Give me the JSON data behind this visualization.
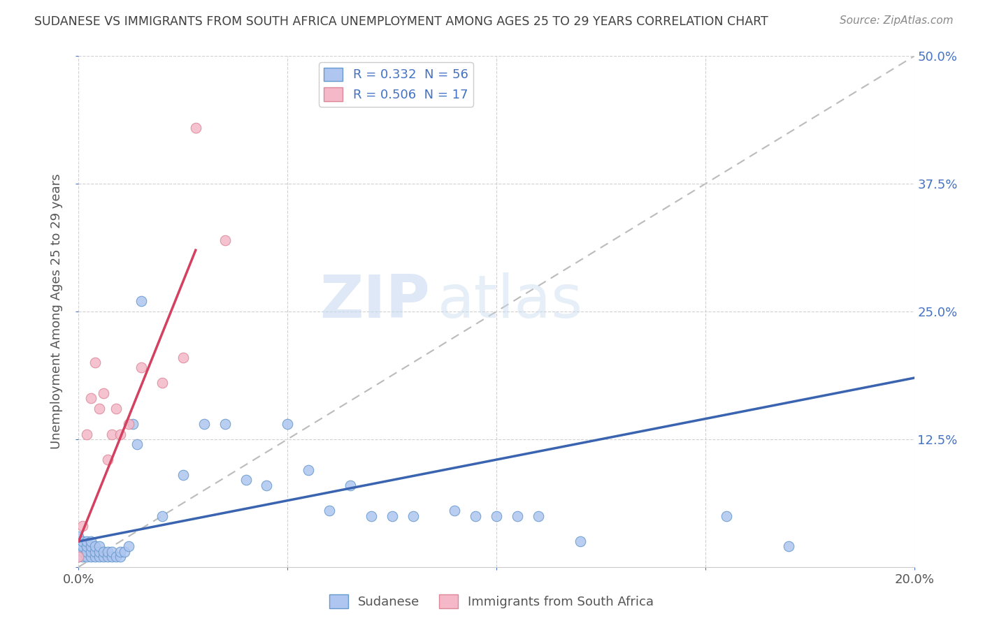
{
  "title": "SUDANESE VS IMMIGRANTS FROM SOUTH AFRICA UNEMPLOYMENT AMONG AGES 25 TO 29 YEARS CORRELATION CHART",
  "source": "Source: ZipAtlas.com",
  "ylabel": "Unemployment Among Ages 25 to 29 years",
  "xlim": [
    0.0,
    0.2
  ],
  "ylim": [
    0.0,
    0.5
  ],
  "xticks": [
    0.0,
    0.05,
    0.1,
    0.15,
    0.2
  ],
  "yticks": [
    0.0,
    0.125,
    0.25,
    0.375,
    0.5
  ],
  "legend_entries": [
    {
      "color": "#aec6f0",
      "edge_color": "#6699cc",
      "R": "0.332",
      "N": "56",
      "label": "Sudanese"
    },
    {
      "color": "#f4b8c8",
      "edge_color": "#dd8899",
      "R": "0.506",
      "N": "17",
      "label": "Immigrants from South Africa"
    }
  ],
  "blue_line_color": "#3a64b0",
  "pink_line_color": "#d44060",
  "diagonal_color": "#bbbbbb",
  "background_color": "#ffffff",
  "grid_color": "#cccccc",
  "title_color": "#404040",
  "source_color": "#888888",
  "ylabel_color": "#555555",
  "tick_color": "#4472c4",
  "watermark_color": "#d0e4f4",
  "blue_scatter_x": [
    0.0,
    0.0,
    0.0,
    0.001,
    0.001,
    0.001,
    0.001,
    0.002,
    0.002,
    0.002,
    0.002,
    0.003,
    0.003,
    0.003,
    0.003,
    0.004,
    0.004,
    0.004,
    0.005,
    0.005,
    0.005,
    0.006,
    0.006,
    0.007,
    0.007,
    0.008,
    0.008,
    0.009,
    0.01,
    0.01,
    0.011,
    0.012,
    0.013,
    0.014,
    0.015,
    0.02,
    0.025,
    0.03,
    0.035,
    0.04,
    0.045,
    0.05,
    0.055,
    0.06,
    0.065,
    0.07,
    0.075,
    0.08,
    0.09,
    0.095,
    0.1,
    0.105,
    0.11,
    0.12,
    0.155,
    0.17
  ],
  "blue_scatter_y": [
    0.01,
    0.02,
    0.03,
    0.01,
    0.015,
    0.02,
    0.025,
    0.01,
    0.015,
    0.02,
    0.025,
    0.01,
    0.015,
    0.02,
    0.025,
    0.01,
    0.015,
    0.02,
    0.01,
    0.015,
    0.02,
    0.01,
    0.015,
    0.01,
    0.015,
    0.01,
    0.015,
    0.01,
    0.01,
    0.015,
    0.015,
    0.02,
    0.14,
    0.12,
    0.26,
    0.05,
    0.09,
    0.14,
    0.14,
    0.085,
    0.08,
    0.14,
    0.095,
    0.055,
    0.08,
    0.05,
    0.05,
    0.05,
    0.055,
    0.05,
    0.05,
    0.05,
    0.05,
    0.025,
    0.05,
    0.02
  ],
  "pink_scatter_x": [
    0.0,
    0.001,
    0.002,
    0.003,
    0.004,
    0.005,
    0.006,
    0.007,
    0.008,
    0.009,
    0.01,
    0.012,
    0.015,
    0.02,
    0.025,
    0.028,
    0.035
  ],
  "pink_scatter_y": [
    0.01,
    0.04,
    0.13,
    0.165,
    0.2,
    0.155,
    0.17,
    0.105,
    0.13,
    0.155,
    0.13,
    0.14,
    0.195,
    0.18,
    0.205,
    0.43,
    0.32
  ],
  "blue_line_x": [
    0.0,
    0.2
  ],
  "blue_line_y": [
    0.025,
    0.185
  ],
  "pink_line_x": [
    0.0,
    0.028
  ],
  "pink_line_y": [
    0.025,
    0.31
  ]
}
